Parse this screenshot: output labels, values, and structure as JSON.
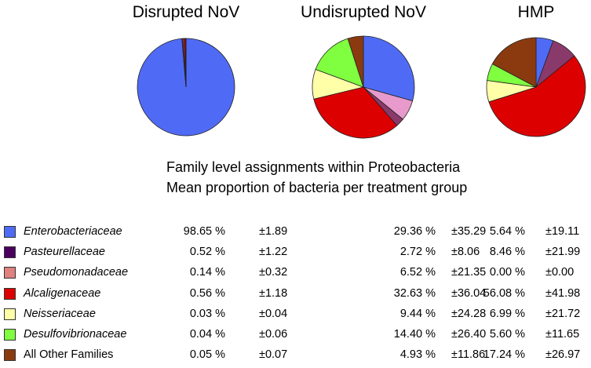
{
  "chart_data": {
    "type": "pie",
    "groups": [
      "Disrupted NoV",
      "Undisrupted NoV",
      "HMP"
    ],
    "subtitle_lines": [
      "Family level assignments within Proteobacteria",
      "Mean proportion of bacteria per treatment group"
    ],
    "series": [
      {
        "name": "Enterobacteriaceae",
        "italic": true,
        "color": "#4F6BF5",
        "mean": [
          98.65,
          29.36,
          5.64
        ],
        "sd": [
          1.89,
          35.29,
          19.11
        ],
        "mean_text": [
          "98.65 %",
          "29.36 %",
          "5.64 %"
        ],
        "sd_text": [
          "±1.89",
          "±35.29",
          "±19.11"
        ]
      },
      {
        "name": "Pasteurellaceae",
        "italic": true,
        "color": "#8A3A6A",
        "mean": [
          0.52,
          2.72,
          8.46
        ],
        "sd": [
          1.22,
          8.06,
          21.99
        ],
        "mean_text": [
          "0.52 %",
          "2.72 %",
          "8.46 %"
        ],
        "sd_text": [
          "±1.22",
          "±8.06",
          "±21.99"
        ]
      },
      {
        "name": "Pseudomonadaceae",
        "italic": true,
        "color": "#E79ACB",
        "mean": [
          0.14,
          6.52,
          0.0
        ],
        "sd": [
          0.32,
          21.35,
          0.0
        ],
        "mean_text": [
          "0.14 %",
          "6.52 %",
          "0.00 %"
        ],
        "sd_text": [
          "±0.32",
          "±21.35",
          "±0.00"
        ]
      },
      {
        "name": "Alcaligenaceae",
        "italic": true,
        "color": "#DD0000",
        "mean": [
          0.56,
          32.63,
          56.08
        ],
        "sd": [
          1.18,
          36.04,
          41.98
        ],
        "mean_text": [
          "0.56 %",
          "32.63 %",
          "56.08 %"
        ],
        "sd_text": [
          "±1.18",
          "±36.04",
          "±41.98"
        ]
      },
      {
        "name": "Neisseriaceae",
        "italic": true,
        "color": "#FFFFA8",
        "mean": [
          0.03,
          9.44,
          6.99
        ],
        "sd": [
          0.04,
          24.28,
          21.72
        ],
        "mean_text": [
          "0.03 %",
          "9.44 %",
          "6.99 %"
        ],
        "sd_text": [
          "±0.04",
          "±24.28",
          "±21.72"
        ]
      },
      {
        "name": "Desulfovibrionaceae",
        "italic": true,
        "color": "#80FF40",
        "mean": [
          0.04,
          14.4,
          5.6
        ],
        "sd": [
          0.06,
          26.4,
          11.65
        ],
        "mean_text": [
          "0.04 %",
          "14.40 %",
          "5.60 %"
        ],
        "sd_text": [
          "±0.06",
          "±26.40",
          "±11.65"
        ]
      },
      {
        "name": "All Other Families",
        "italic": false,
        "color": "#8B3A10",
        "mean": [
          0.05,
          4.93,
          17.24
        ],
        "sd": [
          0.07,
          11.86,
          26.97
        ],
        "mean_text": [
          "0.05 %",
          "4.93 %",
          "17.24 %"
        ],
        "sd_text": [
          "±0.07",
          "±11.86",
          "±26.97"
        ]
      }
    ],
    "legend_colors": [
      "#4F6BF5",
      "#4B0060",
      "#E08080",
      "#DD0000",
      "#FFFFAA",
      "#80FF40",
      "#8B3A10"
    ],
    "slice_order": [
      "Enterobacteriaceae",
      "Pseudomonadaceae",
      "Pasteurellaceae",
      "Alcaligenaceae",
      "Neisseriaceae",
      "Desulfovibrionaceae",
      "All Other Families"
    ]
  }
}
